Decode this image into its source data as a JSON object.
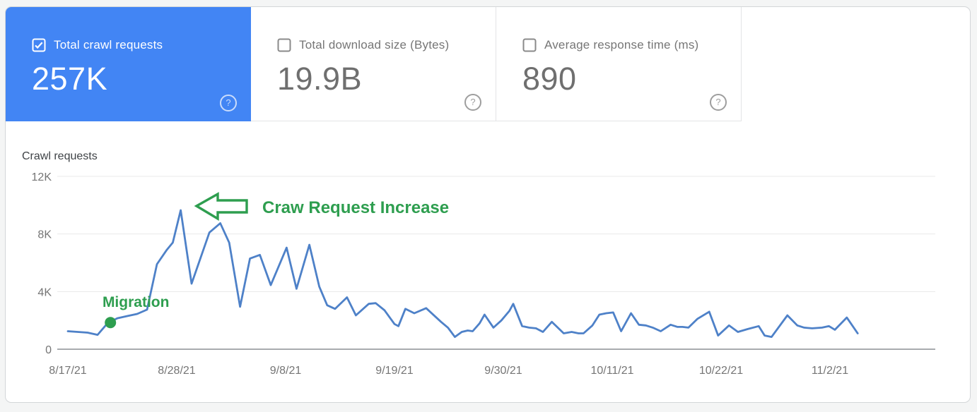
{
  "cards": [
    {
      "label": "Total crawl requests",
      "value": "257K",
      "checked": true,
      "selected": true,
      "help_icon": "question-mark-circle"
    },
    {
      "label": "Total download size (Bytes)",
      "value": "19.9B",
      "checked": false,
      "selected": false,
      "help_icon": "question-mark-circle"
    },
    {
      "label": "Average response time (ms)",
      "value": "890",
      "checked": false,
      "selected": false,
      "help_icon": "question-mark-circle"
    }
  ],
  "colors": {
    "selected_card_bg": "#4285f4",
    "card_text_gray": "#767676",
    "line_blue": "#4e81c8",
    "annotation_green": "#2e9e4f",
    "gridline_gray": "#e8e8e8",
    "axis_gray": "#757575"
  },
  "chart_data": {
    "type": "line",
    "title": "Crawl requests",
    "xlabel": "",
    "ylabel": "",
    "ylim": [
      0,
      12000
    ],
    "grid": "horizontal",
    "legend": "none",
    "y_ticks": [
      {
        "value": 0,
        "label": "0"
      },
      {
        "value": 4000,
        "label": "4K"
      },
      {
        "value": 8000,
        "label": "8K"
      },
      {
        "value": 12000,
        "label": "12K"
      }
    ],
    "x_ticks": [
      {
        "day": 0,
        "label": "8/17/21"
      },
      {
        "day": 11,
        "label": "8/28/21"
      },
      {
        "day": 22,
        "label": "9/8/21"
      },
      {
        "day": 33,
        "label": "9/19/21"
      },
      {
        "day": 44,
        "label": "9/30/21"
      },
      {
        "day": 55,
        "label": "10/11/21"
      },
      {
        "day": 66,
        "label": "10/22/21"
      },
      {
        "day": 77,
        "label": "11/2/21"
      }
    ],
    "series": [
      {
        "name": "Total crawl requests",
        "points": [
          [
            0,
            1250
          ],
          [
            1,
            1200
          ],
          [
            2,
            1150
          ],
          [
            3,
            1000
          ],
          [
            4,
            1800
          ],
          [
            5,
            2150
          ],
          [
            6,
            2300
          ],
          [
            7,
            2450
          ],
          [
            8,
            2750
          ],
          [
            9,
            5900
          ],
          [
            10,
            6900
          ],
          [
            10.6,
            7400
          ],
          [
            11.4,
            9650
          ],
          [
            12.5,
            4550
          ],
          [
            14.3,
            8100
          ],
          [
            15.4,
            8750
          ],
          [
            16.3,
            7400
          ],
          [
            17.4,
            2950
          ],
          [
            18.4,
            6300
          ],
          [
            19.4,
            6550
          ],
          [
            20.5,
            4450
          ],
          [
            22.1,
            7050
          ],
          [
            23.1,
            4200
          ],
          [
            24.4,
            7250
          ],
          [
            25.4,
            4350
          ],
          [
            26.2,
            3050
          ],
          [
            27,
            2800
          ],
          [
            28.2,
            3600
          ],
          [
            29.1,
            2350
          ],
          [
            30.4,
            3150
          ],
          [
            31.1,
            3200
          ],
          [
            32,
            2700
          ],
          [
            33,
            1750
          ],
          [
            33.4,
            1600
          ],
          [
            34.1,
            2800
          ],
          [
            35,
            2500
          ],
          [
            36.2,
            2850
          ],
          [
            37.7,
            1900
          ],
          [
            38.4,
            1500
          ],
          [
            39.1,
            850
          ],
          [
            39.8,
            1200
          ],
          [
            40.4,
            1300
          ],
          [
            40.9,
            1250
          ],
          [
            41.6,
            1800
          ],
          [
            42.1,
            2400
          ],
          [
            43,
            1500
          ],
          [
            43.8,
            2000
          ],
          [
            44.6,
            2650
          ],
          [
            45,
            3150
          ],
          [
            45.9,
            1600
          ],
          [
            46.6,
            1500
          ],
          [
            47.3,
            1450
          ],
          [
            48,
            1200
          ],
          [
            48.9,
            1900
          ],
          [
            49.5,
            1500
          ],
          [
            50.1,
            1100
          ],
          [
            50.9,
            1200
          ],
          [
            51.6,
            1100
          ],
          [
            52.1,
            1100
          ],
          [
            53,
            1650
          ],
          [
            53.7,
            2400
          ],
          [
            54.4,
            2500
          ],
          [
            55.1,
            2550
          ],
          [
            55.9,
            1250
          ],
          [
            56.9,
            2500
          ],
          [
            57.7,
            1700
          ],
          [
            58.4,
            1650
          ],
          [
            59.1,
            1500
          ],
          [
            59.9,
            1250
          ],
          [
            60.9,
            1700
          ],
          [
            61.6,
            1550
          ],
          [
            62.1,
            1550
          ],
          [
            62.7,
            1500
          ],
          [
            63.6,
            2100
          ],
          [
            64.8,
            2600
          ],
          [
            65.7,
            950
          ],
          [
            66.8,
            1650
          ],
          [
            67.7,
            1200
          ],
          [
            68.7,
            1400
          ],
          [
            69.8,
            1600
          ],
          [
            70.4,
            950
          ],
          [
            71.1,
            850
          ],
          [
            72.7,
            2350
          ],
          [
            73.7,
            1650
          ],
          [
            74.4,
            1500
          ],
          [
            75.2,
            1450
          ],
          [
            76.2,
            1500
          ],
          [
            76.9,
            1600
          ],
          [
            77.5,
            1350
          ],
          [
            78.7,
            2200
          ],
          [
            79.8,
            1100
          ]
        ]
      }
    ],
    "annotations": [
      {
        "type": "dot",
        "label": "Migration",
        "day": 4.3,
        "value": 1850
      },
      {
        "type": "arrow-left",
        "label": "Craw Request Increase",
        "points_at": "first peak (~9.6K on 8/28/21)"
      }
    ]
  }
}
